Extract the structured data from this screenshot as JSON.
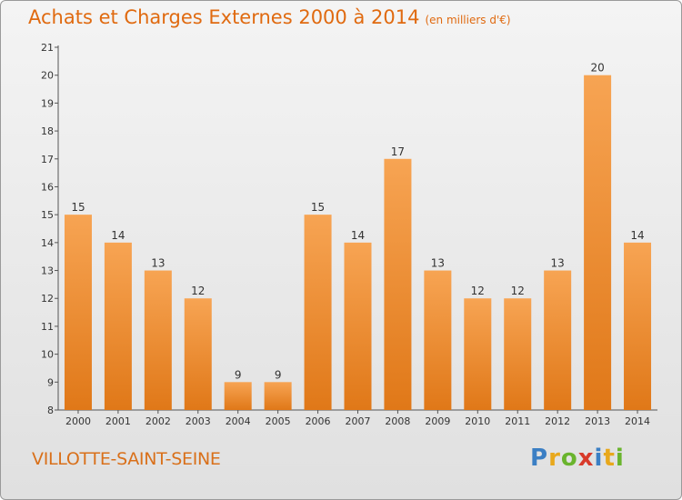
{
  "header": {
    "title": "Achats et Charges Externes 2000 à 2014",
    "subtitle": "(en milliers d'€)"
  },
  "footer": {
    "commune": "VILLOTTE-SAINT-SEINE",
    "logo_letters": [
      "P",
      "r",
      "o",
      "x",
      "i",
      "t",
      "i"
    ],
    "logo_colors": [
      "#3b7fc4",
      "#e8a81c",
      "#6ab42d",
      "#d83a2a",
      "#3b7fc4",
      "#e8a81c",
      "#6ab42d"
    ]
  },
  "chart_data": {
    "type": "bar",
    "categories": [
      "2000",
      "2001",
      "2002",
      "2003",
      "2004",
      "2005",
      "2006",
      "2007",
      "2008",
      "2009",
      "2010",
      "2011",
      "2012",
      "2013",
      "2014"
    ],
    "values": [
      15,
      14,
      13,
      12,
      9,
      9,
      15,
      14,
      17,
      13,
      12,
      12,
      13,
      20,
      14
    ],
    "ylim": [
      8,
      21
    ],
    "yticks": [
      8,
      9,
      10,
      11,
      12,
      13,
      14,
      15,
      16,
      17,
      18,
      19,
      20,
      21
    ],
    "bar_color": "#f08a2e",
    "grid": false,
    "data_labels": true
  }
}
